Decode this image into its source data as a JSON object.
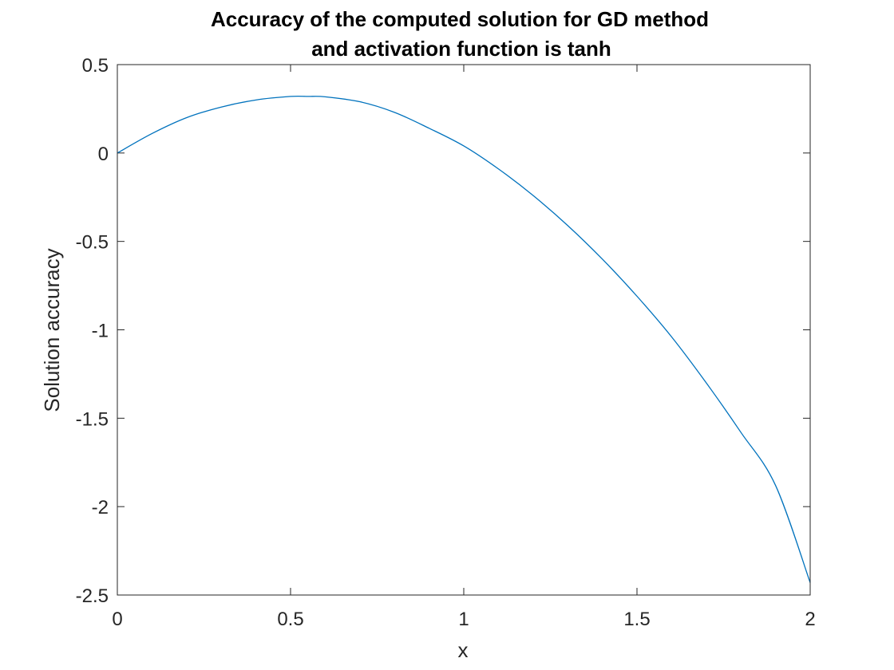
{
  "chart_data": {
    "type": "line",
    "title_lines": [
      "Accuracy of the computed solution for GD method",
      "and activation function is tanh"
    ],
    "xlabel": "x",
    "ylabel": "Solution accuracy",
    "xlim": [
      0,
      2
    ],
    "ylim": [
      -2.5,
      0.5
    ],
    "x_ticks": [
      0,
      0.5,
      1,
      1.5,
      2
    ],
    "x_tick_labels": [
      "0",
      "0.5",
      "1",
      "1.5",
      "2"
    ],
    "y_ticks": [
      0.5,
      0,
      -0.5,
      -1,
      -1.5,
      -2,
      -2.5
    ],
    "y_tick_labels": [
      "0.5",
      "0",
      "-0.5",
      "-1",
      "-1.5",
      "-2",
      "-2.5"
    ],
    "grid": false,
    "legend": "none",
    "series_color": "#0072BD",
    "series": [
      {
        "x": [
          0,
          0.1,
          0.2,
          0.3,
          0.4,
          0.5,
          0.55,
          0.6,
          0.7,
          0.8,
          0.9,
          1.0,
          1.1,
          1.2,
          1.3,
          1.4,
          1.5,
          1.6,
          1.7,
          1.8,
          1.9,
          2.0
        ],
        "values": [
          0,
          0.11,
          0.2,
          0.26,
          0.3,
          0.32,
          0.32,
          0.318,
          0.29,
          0.23,
          0.14,
          0.04,
          -0.09,
          -0.24,
          -0.41,
          -0.6,
          -0.81,
          -1.04,
          -1.3,
          -1.58,
          -1.88,
          -2.43
        ]
      }
    ]
  }
}
